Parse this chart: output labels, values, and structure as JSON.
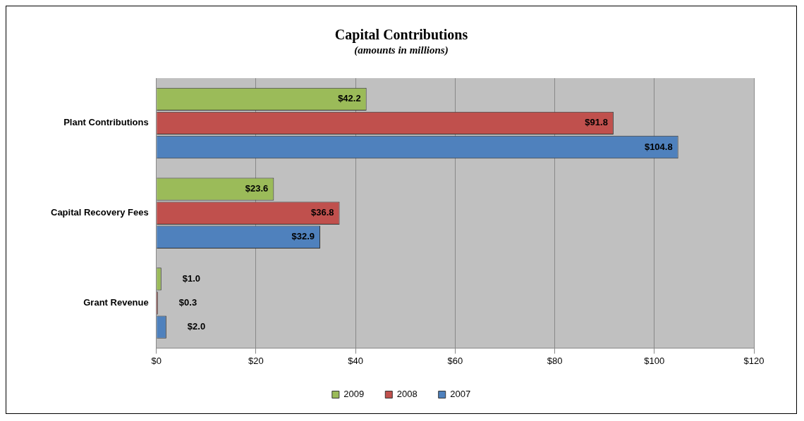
{
  "chart_data": {
    "type": "bar",
    "title": "Capital Contributions",
    "subtitle": "(amounts in millions)",
    "orientation": "horizontal",
    "categories": [
      "Plant Contributions",
      "Capital Recovery Fees",
      "Grant Revenue"
    ],
    "series": [
      {
        "name": "2009",
        "color": "#9bbb59",
        "values": [
          42.2,
          23.6,
          1.0
        ],
        "value_labels": [
          "$42.2",
          "$23.6",
          "$1.0"
        ]
      },
      {
        "name": "2008",
        "color": "#c0504d",
        "values": [
          91.8,
          36.8,
          0.3
        ],
        "value_labels": [
          "$91.8",
          "$36.8",
          "$0.3"
        ]
      },
      {
        "name": "2007",
        "color": "#4f81bd",
        "values": [
          104.8,
          32.9,
          2.0
        ],
        "value_labels": [
          "$104.8",
          "$32.9",
          "$2.0"
        ]
      }
    ],
    "xlim": [
      0,
      120
    ],
    "xticks": [
      {
        "value": 0,
        "label": "$0"
      },
      {
        "value": 20,
        "label": "$20"
      },
      {
        "value": 40,
        "label": "$40"
      },
      {
        "value": 60,
        "label": "$60"
      },
      {
        "value": 80,
        "label": "$80"
      },
      {
        "value": 100,
        "label": "$100"
      },
      {
        "value": 120,
        "label": "$120"
      }
    ],
    "grid": "x",
    "legend": "bottom"
  }
}
